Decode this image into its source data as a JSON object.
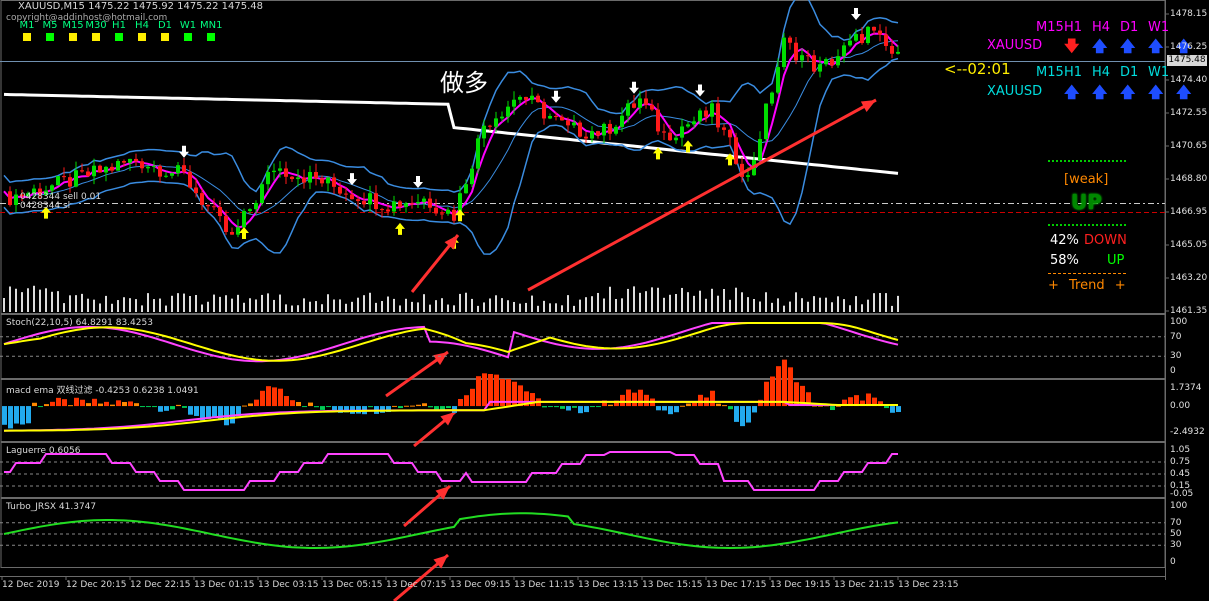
{
  "chart_header": {
    "symbol_line": "XAUUSD,M15  1475.22 1475.92 1475.22 1475.48",
    "copyright": "copyright@addinhost@hotmail.com",
    "timeframes": [
      "M1",
      "M5",
      "M15",
      "M30",
      "H1",
      "H4",
      "D1",
      "W1",
      "MN1"
    ],
    "timeframe_colors": [
      "#ffee00",
      "#00ff00",
      "#ffee00",
      "#ffee00",
      "#00ff00",
      "#ffee00",
      "#ffee00",
      "#00ff00",
      "#00ff00"
    ]
  },
  "annotation_text": "做多",
  "order_lines": {
    "line1": "0428344 sell 0.01",
    "line2": "0428344 sl"
  },
  "countdown": "<--02:01",
  "right_panel": {
    "tf_row1": [
      "M15",
      "H1",
      "H4",
      "D1",
      "W1"
    ],
    "symbol1": "XAUUSD",
    "arrows1": [
      "down",
      "up",
      "up",
      "up",
      "up"
    ],
    "tf_row2": [
      "M15",
      "H1",
      "H4",
      "D1",
      "W1"
    ],
    "symbol2": "XAUUSD",
    "arrows2": [
      "up",
      "up",
      "up",
      "up",
      "up"
    ],
    "weak_label": "[weak]",
    "up_badge": "UP",
    "down_pct": "42%",
    "down_label": "DOWN",
    "up_pct": "58%",
    "up_label": "UP",
    "trend_label": "+ Trend +"
  },
  "price_axis": {
    "labels": [
      "1478.15",
      "1476.25",
      "1474.40",
      "1472.55",
      "1470.65",
      "1468.80",
      "1466.95",
      "1465.05",
      "1463.20",
      "1461.35"
    ],
    "current": "1475.48"
  },
  "indicators": {
    "stoch": {
      "title": "Stoch(22,10,5) 64.8291 83.4253",
      "levels": [
        "100",
        "70",
        "30",
        "0"
      ]
    },
    "macd": {
      "title": "macd ema 双线过滤 -0.4253 0.6238 1.0491",
      "levels": [
        "1.7374",
        "0.00",
        "-2.4932"
      ]
    },
    "laguerre": {
      "title": "Laguerre 0.6056",
      "levels": [
        "1.05",
        "0.75",
        "0.45",
        "0.15",
        "-0.05"
      ]
    },
    "turbo": {
      "title": "Turbo_JRSX 41.3747",
      "levels": [
        "100",
        "70",
        "50",
        "30",
        "0"
      ]
    }
  },
  "time_axis": [
    "12 Dec 2019",
    "12 Dec 20:15",
    "12 Dec 22:15",
    "13 Dec 01:15",
    "13 Dec 03:15",
    "13 Dec 05:15",
    "13 Dec 07:15",
    "13 Dec 09:15",
    "13 Dec 11:15",
    "13 Dec 13:15",
    "13 Dec 15:15",
    "13 Dec 17:15",
    "13 Dec 19:15",
    "13 Dec 21:15",
    "13 Dec 23:15"
  ]
}
